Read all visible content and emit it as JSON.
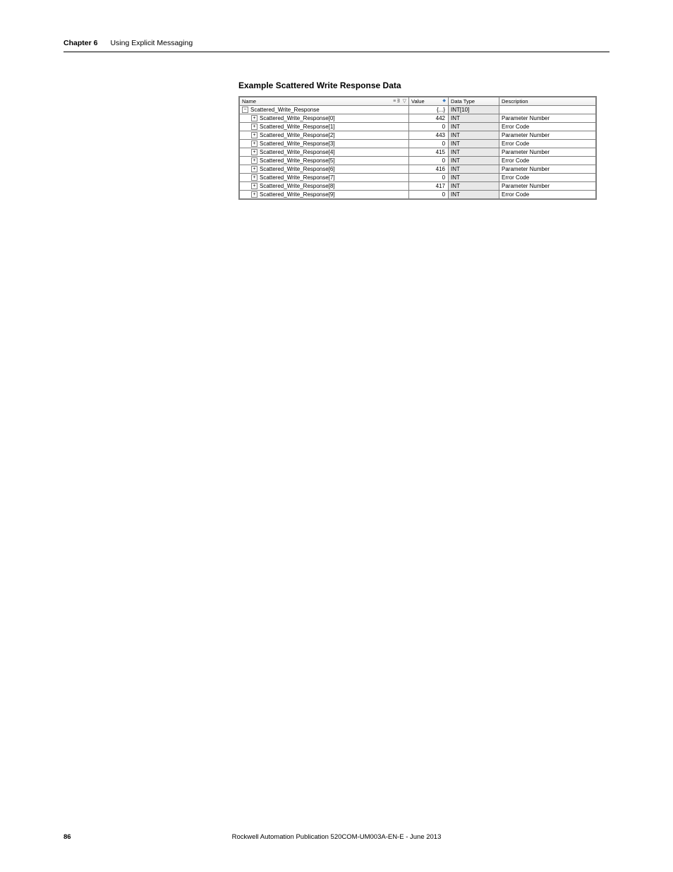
{
  "header": {
    "chapter_label": "Chapter 6",
    "chapter_title": "Using Explicit Messaging"
  },
  "section_heading": "Example Scattered Write Response Data",
  "table": {
    "columns": {
      "name": "Name",
      "value": "Value",
      "data_type": "Data Type",
      "description": "Description"
    },
    "rows": [
      {
        "indent": 0,
        "expander": "minus",
        "name": "Scattered_Write_Response",
        "value": "{...}",
        "data_type": "INT[10]",
        "description": ""
      },
      {
        "indent": 1,
        "expander": "plus",
        "name": "Scattered_Write_Response[0]",
        "value": "442",
        "data_type": "INT",
        "description": "Parameter Number"
      },
      {
        "indent": 1,
        "expander": "plus",
        "name": "Scattered_Write_Response[1]",
        "value": "0",
        "data_type": "INT",
        "description": "Error Code"
      },
      {
        "indent": 1,
        "expander": "plus",
        "name": "Scattered_Write_Response[2]",
        "value": "443",
        "data_type": "INT",
        "description": "Parameter Number"
      },
      {
        "indent": 1,
        "expander": "plus",
        "name": "Scattered_Write_Response[3]",
        "value": "0",
        "data_type": "INT",
        "description": "Error Code"
      },
      {
        "indent": 1,
        "expander": "plus",
        "name": "Scattered_Write_Response[4]",
        "value": "415",
        "data_type": "INT",
        "description": "Parameter Number"
      },
      {
        "indent": 1,
        "expander": "plus",
        "name": "Scattered_Write_Response[5]",
        "value": "0",
        "data_type": "INT",
        "description": "Error Code"
      },
      {
        "indent": 1,
        "expander": "plus",
        "name": "Scattered_Write_Response[6]",
        "value": "416",
        "data_type": "INT",
        "description": "Parameter Number"
      },
      {
        "indent": 1,
        "expander": "plus",
        "name": "Scattered_Write_Response[7]",
        "value": "0",
        "data_type": "INT",
        "description": "Error Code"
      },
      {
        "indent": 1,
        "expander": "plus",
        "name": "Scattered_Write_Response[8]",
        "value": "417",
        "data_type": "INT",
        "description": "Parameter Number"
      },
      {
        "indent": 1,
        "expander": "plus",
        "name": "Scattered_Write_Response[9]",
        "value": "0",
        "data_type": "INT",
        "description": "Error Code"
      }
    ],
    "header_icons": "≡∃ ▽"
  },
  "footer": {
    "page_number": "86",
    "publication": "Rockwell Automation Publication 520COM-UM003A-EN-E - June 2013"
  }
}
